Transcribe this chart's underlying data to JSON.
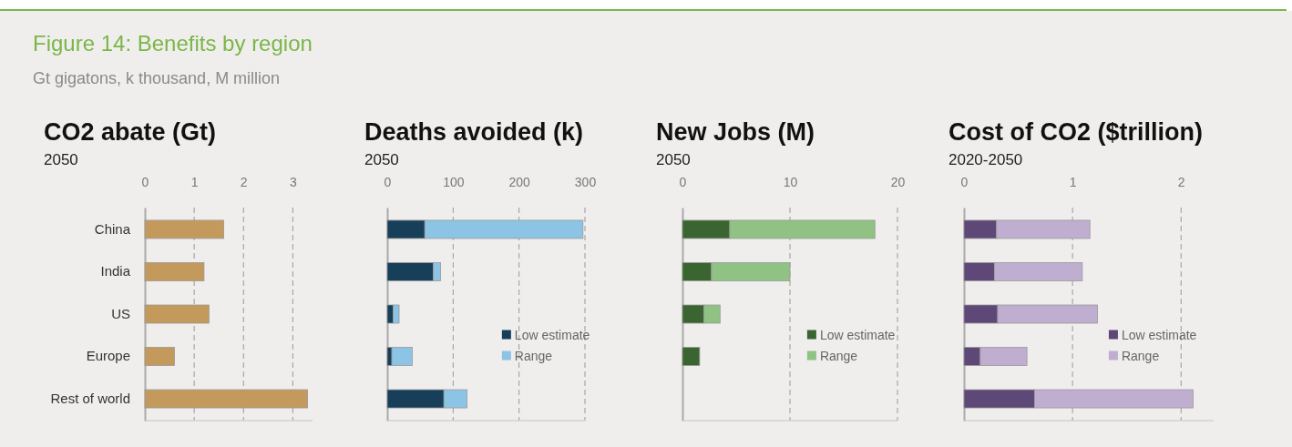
{
  "chart_data": [
    {
      "type": "bar",
      "orientation": "horizontal",
      "title": "CO2 abate (Gt)",
      "subtitle": "2050",
      "annotations": [
        "Figure 14: Benefits by region",
        "Gt gigatons, k thousand, M million"
      ],
      "categories": [
        "China",
        "India",
        "US",
        "Europe",
        "Rest of world"
      ],
      "values": [
        1.6,
        1.2,
        1.3,
        0.6,
        3.3
      ],
      "color": "#c49a5c",
      "xlim": [
        0,
        3.4
      ],
      "xticks": [
        0,
        1,
        2,
        3
      ],
      "grid": "x"
    },
    {
      "type": "bar",
      "orientation": "horizontal",
      "stacked": true,
      "title": "Deaths avoided (k)",
      "subtitle": "2050",
      "categories": [
        null,
        null,
        null,
        null,
        null
      ],
      "xlim": [
        0,
        300
      ],
      "xticks": [
        0,
        100,
        200,
        300
      ],
      "grid": "x",
      "legend": "right",
      "series": [
        {
          "name": "Low estimate",
          "color": "#173f5a",
          "values": [
            57,
            70,
            9,
            7,
            86
          ]
        },
        {
          "name": "Range",
          "color": "#8cc4e6",
          "values": [
            240,
            11,
            9,
            31,
            35
          ]
        }
      ]
    },
    {
      "type": "bar",
      "orientation": "horizontal",
      "stacked": true,
      "title": "New Jobs (M)",
      "subtitle": "2050",
      "categories": [
        null,
        null,
        null,
        null,
        null
      ],
      "xlim": [
        0,
        20
      ],
      "xticks": [
        0,
        10,
        20
      ],
      "grid": "x",
      "legend": "right",
      "series": [
        {
          "name": "Low estimate",
          "color": "#3a6530",
          "values": [
            4.4,
            2.7,
            2.0,
            1.6,
            null
          ]
        },
        {
          "name": "Range",
          "color": "#8fc283",
          "values": [
            13.5,
            7.3,
            1.5,
            null,
            null
          ]
        }
      ]
    },
    {
      "type": "bar",
      "orientation": "horizontal",
      "stacked": true,
      "title": "Cost of CO2 ($trillion)",
      "subtitle": "2020-2050",
      "categories": [
        null,
        null,
        null,
        null,
        null
      ],
      "xlim": [
        0,
        2.3
      ],
      "xticks": [
        0,
        1,
        2
      ],
      "grid": "x",
      "legend": "right",
      "series": [
        {
          "name": "Low estimate",
          "color": "#5e4878",
          "values": [
            0.3,
            0.28,
            0.31,
            0.15,
            0.65
          ]
        },
        {
          "name": "Range",
          "color": "#bfaed0",
          "values": [
            0.86,
            0.81,
            0.92,
            0.43,
            1.46
          ]
        }
      ]
    }
  ]
}
